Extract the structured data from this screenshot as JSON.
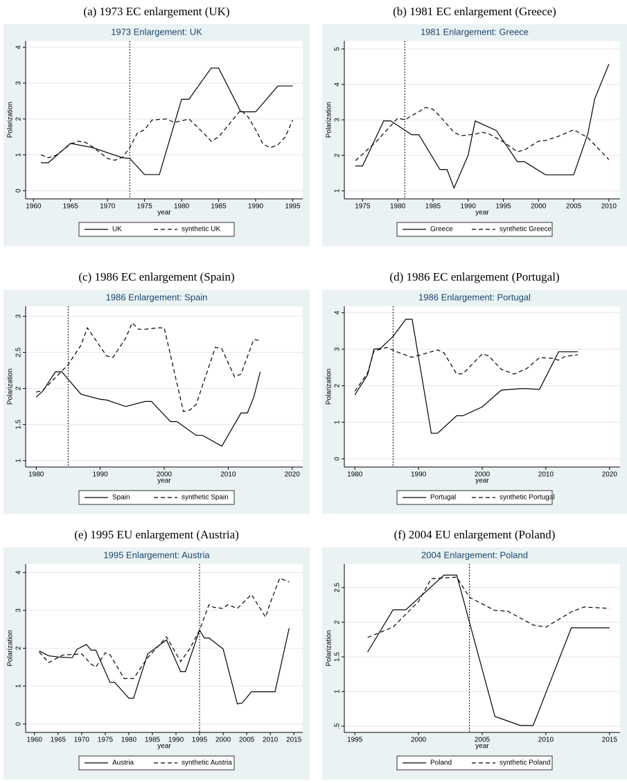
{
  "chart_data": [
    {
      "type": "line",
      "caption": "(a) 1973 EC enlargement (UK)",
      "title": "1973 Enlargement: UK",
      "ylabel": "Polarization",
      "xlabel": "year",
      "xlim": [
        1959.5,
        1995.8
      ],
      "xticks": [
        1960,
        1965,
        1970,
        1975,
        1980,
        1985,
        1990,
        1995
      ],
      "ylim": [
        -0.15,
        4.1
      ],
      "yticks": [
        0,
        1,
        2,
        3,
        4
      ],
      "grid": true,
      "vline": 1973,
      "series": [
        {
          "name": "UK",
          "color": "#000000",
          "style": "solid",
          "x": [
            1961,
            1962,
            1965,
            1968,
            1972,
            1973,
            1975,
            1977,
            1980,
            1981,
            1984,
            1985,
            1988,
            1990,
            1993,
            1995
          ],
          "values": [
            0.78,
            0.78,
            1.32,
            1.2,
            0.92,
            0.9,
            0.45,
            0.45,
            2.55,
            2.55,
            3.42,
            3.42,
            2.2,
            2.2,
            2.92,
            2.92
          ]
        },
        {
          "name": "synthetic UK",
          "color": "#000000",
          "style": "dashed",
          "x": [
            1961,
            1962,
            1963,
            1965,
            1966,
            1967,
            1968,
            1970,
            1971,
            1972,
            1973,
            1974,
            1975,
            1976,
            1978,
            1979,
            1981,
            1983,
            1984,
            1985,
            1988,
            1989,
            1990,
            1991,
            1992,
            1993,
            1994,
            1995
          ],
          "values": [
            1.0,
            0.92,
            0.98,
            1.3,
            1.38,
            1.35,
            1.22,
            0.9,
            0.85,
            0.93,
            1.2,
            1.6,
            1.7,
            1.97,
            2.0,
            1.9,
            2.0,
            1.6,
            1.38,
            1.5,
            2.25,
            2.05,
            1.7,
            1.3,
            1.2,
            1.28,
            1.5,
            1.97
          ]
        }
      ]
    },
    {
      "type": "line",
      "caption": "(b) 1981 EC enlargement (Greece)",
      "title": "1981 Enlargement: Greece",
      "ylabel": "Polarization",
      "xlabel": "year",
      "xlim": [
        1973,
        2011
      ],
      "xticks": [
        1975,
        1980,
        1985,
        1990,
        1995,
        2000,
        2005,
        2010
      ],
      "ylim": [
        0.85,
        5.15
      ],
      "yticks": [
        1,
        2,
        3,
        4,
        5
      ],
      "grid": true,
      "vline": 1981,
      "series": [
        {
          "name": "Greece",
          "color": "#000000",
          "style": "solid",
          "x": [
            1974,
            1975,
            1978,
            1979,
            1982,
            1983,
            1986,
            1987,
            1988,
            1990,
            1991,
            1994,
            1997,
            1998,
            2001,
            2005,
            2007,
            2008,
            2010
          ],
          "values": [
            1.7,
            1.7,
            2.97,
            2.97,
            2.58,
            2.58,
            1.6,
            1.6,
            1.08,
            2.0,
            2.97,
            2.7,
            1.82,
            1.82,
            1.45,
            1.45,
            2.6,
            3.6,
            4.57
          ]
        },
        {
          "name": "synthetic Greece",
          "color": "#000000",
          "style": "dashed",
          "x": [
            1974,
            1977,
            1980,
            1981,
            1984,
            1985,
            1986,
            1988,
            1989,
            1991,
            1992,
            1993,
            1995,
            1997,
            1998,
            2000,
            2001,
            2003,
            2005,
            2007,
            2010
          ],
          "values": [
            1.85,
            2.4,
            3.05,
            3.0,
            3.35,
            3.3,
            3.1,
            2.65,
            2.55,
            2.6,
            2.65,
            2.6,
            2.38,
            2.1,
            2.15,
            2.4,
            2.42,
            2.55,
            2.72,
            2.5,
            1.88
          ]
        }
      ]
    },
    {
      "type": "line",
      "caption": "(c) 1986 EC enlargement (Spain)",
      "title": "1986 Enlargement: Spain",
      "ylabel": "Polarization",
      "xlabel": "year",
      "xlim": [
        1979,
        2021
      ],
      "xticks": [
        1980,
        1990,
        2000,
        2010,
        2020
      ],
      "ylim": [
        0.95,
        3.1
      ],
      "yticks": [
        1,
        1.5,
        2,
        2.5,
        3
      ],
      "grid": true,
      "vline": 1985,
      "series": [
        {
          "name": "Spain",
          "color": "#000000",
          "style": "solid",
          "x": [
            1980,
            1981,
            1983,
            1984,
            1987,
            1990,
            1991,
            1994,
            1997,
            1998,
            2001,
            2002,
            2005,
            2006,
            2009,
            2012,
            2013,
            2014,
            2015
          ],
          "values": [
            1.88,
            1.96,
            2.23,
            2.23,
            1.92,
            1.85,
            1.84,
            1.75,
            1.82,
            1.82,
            1.54,
            1.54,
            1.35,
            1.35,
            1.2,
            1.66,
            1.66,
            1.88,
            2.23
          ]
        },
        {
          "name": "synthetic Spain",
          "color": "#000000",
          "style": "dashed",
          "x": [
            1980,
            1981,
            1983,
            1985,
            1987,
            1988,
            1991,
            1992,
            1994,
            1995,
            1996,
            1997,
            1999,
            2000,
            2003,
            2004,
            2005,
            2008,
            2009,
            2011,
            2012,
            2014,
            2015
          ],
          "values": [
            1.95,
            1.97,
            2.15,
            2.33,
            2.6,
            2.84,
            2.45,
            2.43,
            2.7,
            2.91,
            2.82,
            2.82,
            2.84,
            2.84,
            1.68,
            1.7,
            1.78,
            2.57,
            2.55,
            2.16,
            2.2,
            2.68,
            2.66
          ]
        }
      ]
    },
    {
      "type": "line",
      "caption": "(d) 1986 EC enlargement (Portugal)",
      "title": "1986 Enlargement: Portugal",
      "ylabel": "Polarization",
      "xlabel": "year",
      "xlim": [
        1979,
        2021
      ],
      "xticks": [
        1980,
        1990,
        2000,
        2010,
        2020
      ],
      "ylim": [
        -0.15,
        4.1
      ],
      "yticks": [
        0,
        1,
        2,
        3,
        4
      ],
      "grid": true,
      "vline": 1986,
      "series": [
        {
          "name": "Portugal",
          "color": "#000000",
          "style": "solid",
          "x": [
            1980,
            1982,
            1983,
            1984,
            1986,
            1988,
            1989,
            1992,
            1993,
            1996,
            1997,
            2000,
            2003,
            2006,
            2007,
            2009,
            2012,
            2015
          ],
          "values": [
            1.75,
            2.3,
            3.0,
            3.02,
            3.35,
            3.82,
            3.82,
            0.7,
            0.7,
            1.18,
            1.18,
            1.42,
            1.88,
            1.92,
            1.92,
            1.9,
            2.93,
            2.93
          ]
        },
        {
          "name": "synthetic Portugal",
          "color": "#000000",
          "style": "dashed",
          "x": [
            1980,
            1982,
            1983,
            1985,
            1987,
            1989,
            1991,
            1993,
            1994,
            1996,
            1997,
            2000,
            2001,
            2003,
            2005,
            2007,
            2009,
            2011,
            2012,
            2013,
            2015
          ],
          "values": [
            1.85,
            2.35,
            2.95,
            3.05,
            2.9,
            2.78,
            2.88,
            2.98,
            2.9,
            2.32,
            2.33,
            2.87,
            2.82,
            2.45,
            2.32,
            2.47,
            2.77,
            2.75,
            2.7,
            2.8,
            2.85
          ]
        }
      ]
    },
    {
      "type": "line",
      "caption": "(e) 1995 EU enlargement (Austria)",
      "title": "1995 Enlargement: Austria",
      "ylabel": "Polarization",
      "xlabel": "year",
      "xlim": [
        1959,
        2016
      ],
      "xticks": [
        1960,
        1965,
        1970,
        1975,
        1980,
        1985,
        1990,
        1995,
        2000,
        2005,
        2010,
        2015
      ],
      "ylim": [
        -0.15,
        4.15
      ],
      "yticks": [
        0,
        1,
        2,
        3,
        4
      ],
      "grid": true,
      "vline": 1995,
      "series": [
        {
          "name": "Austria",
          "color": "#000000",
          "style": "solid",
          "x": [
            1961,
            1963,
            1965,
            1968,
            1969,
            1971,
            1972,
            1973,
            1976,
            1977,
            1980,
            1981,
            1984,
            1988,
            1991,
            1992,
            1995,
            1996,
            1997,
            2000,
            2003,
            2004,
            2006,
            2008,
            2011,
            2014
          ],
          "values": [
            1.93,
            1.8,
            1.77,
            1.75,
            1.97,
            2.1,
            1.95,
            1.95,
            1.1,
            1.1,
            0.68,
            0.68,
            1.85,
            2.22,
            1.38,
            1.38,
            2.48,
            2.27,
            2.27,
            1.98,
            0.53,
            0.55,
            0.85,
            0.85,
            0.85,
            2.53
          ]
        },
        {
          "name": "synthetic Austria",
          "color": "#000000",
          "style": "dashed",
          "x": [
            1961,
            1963,
            1966,
            1970,
            1972,
            1973,
            1975,
            1976,
            1979,
            1981,
            1984,
            1988,
            1991,
            1993,
            1995,
            1997,
            1998,
            2000,
            2001,
            2003,
            2006,
            2009,
            2010,
            2012,
            2014
          ],
          "values": [
            1.9,
            1.62,
            1.82,
            1.85,
            1.58,
            1.5,
            1.88,
            1.83,
            1.2,
            1.2,
            1.75,
            2.3,
            1.65,
            2.0,
            2.48,
            3.15,
            3.08,
            3.05,
            3.15,
            3.05,
            3.42,
            2.82,
            3.2,
            3.85,
            3.75
          ]
        }
      ]
    },
    {
      "type": "line",
      "caption": "(f) 2004 EU enlargement (Poland)",
      "title": "2004 Enlargement: Poland",
      "ylabel": "Polarization",
      "xlabel": "year",
      "xlim": [
        1994.5,
        2015.5
      ],
      "xticks": [
        1995,
        2000,
        2005,
        2010,
        2015
      ],
      "ylim": [
        0.45,
        2.8
      ],
      "yticks": [
        {
          "value": 0.5,
          "label": ".5"
        },
        1,
        1.5,
        2,
        2.5
      ],
      "grid": true,
      "vline": 2004,
      "series": [
        {
          "name": "Poland",
          "color": "#000000",
          "style": "solid",
          "x": [
            1996,
            1998,
            1999,
            2002,
            2003,
            2006,
            2008,
            2009,
            2012,
            2015
          ],
          "values": [
            1.57,
            2.18,
            2.18,
            2.68,
            2.68,
            0.64,
            0.51,
            0.51,
            1.92,
            1.92
          ]
        },
        {
          "name": "synthetic Poland",
          "color": "#000000",
          "style": "dashed",
          "x": [
            1996,
            1998,
            2000,
            2001,
            2003,
            2004,
            2006,
            2007,
            2009,
            2010,
            2012,
            2013,
            2015
          ],
          "values": [
            1.78,
            1.93,
            2.3,
            2.63,
            2.65,
            2.36,
            2.17,
            2.16,
            1.96,
            1.93,
            2.15,
            2.22,
            2.2
          ]
        }
      ]
    }
  ]
}
